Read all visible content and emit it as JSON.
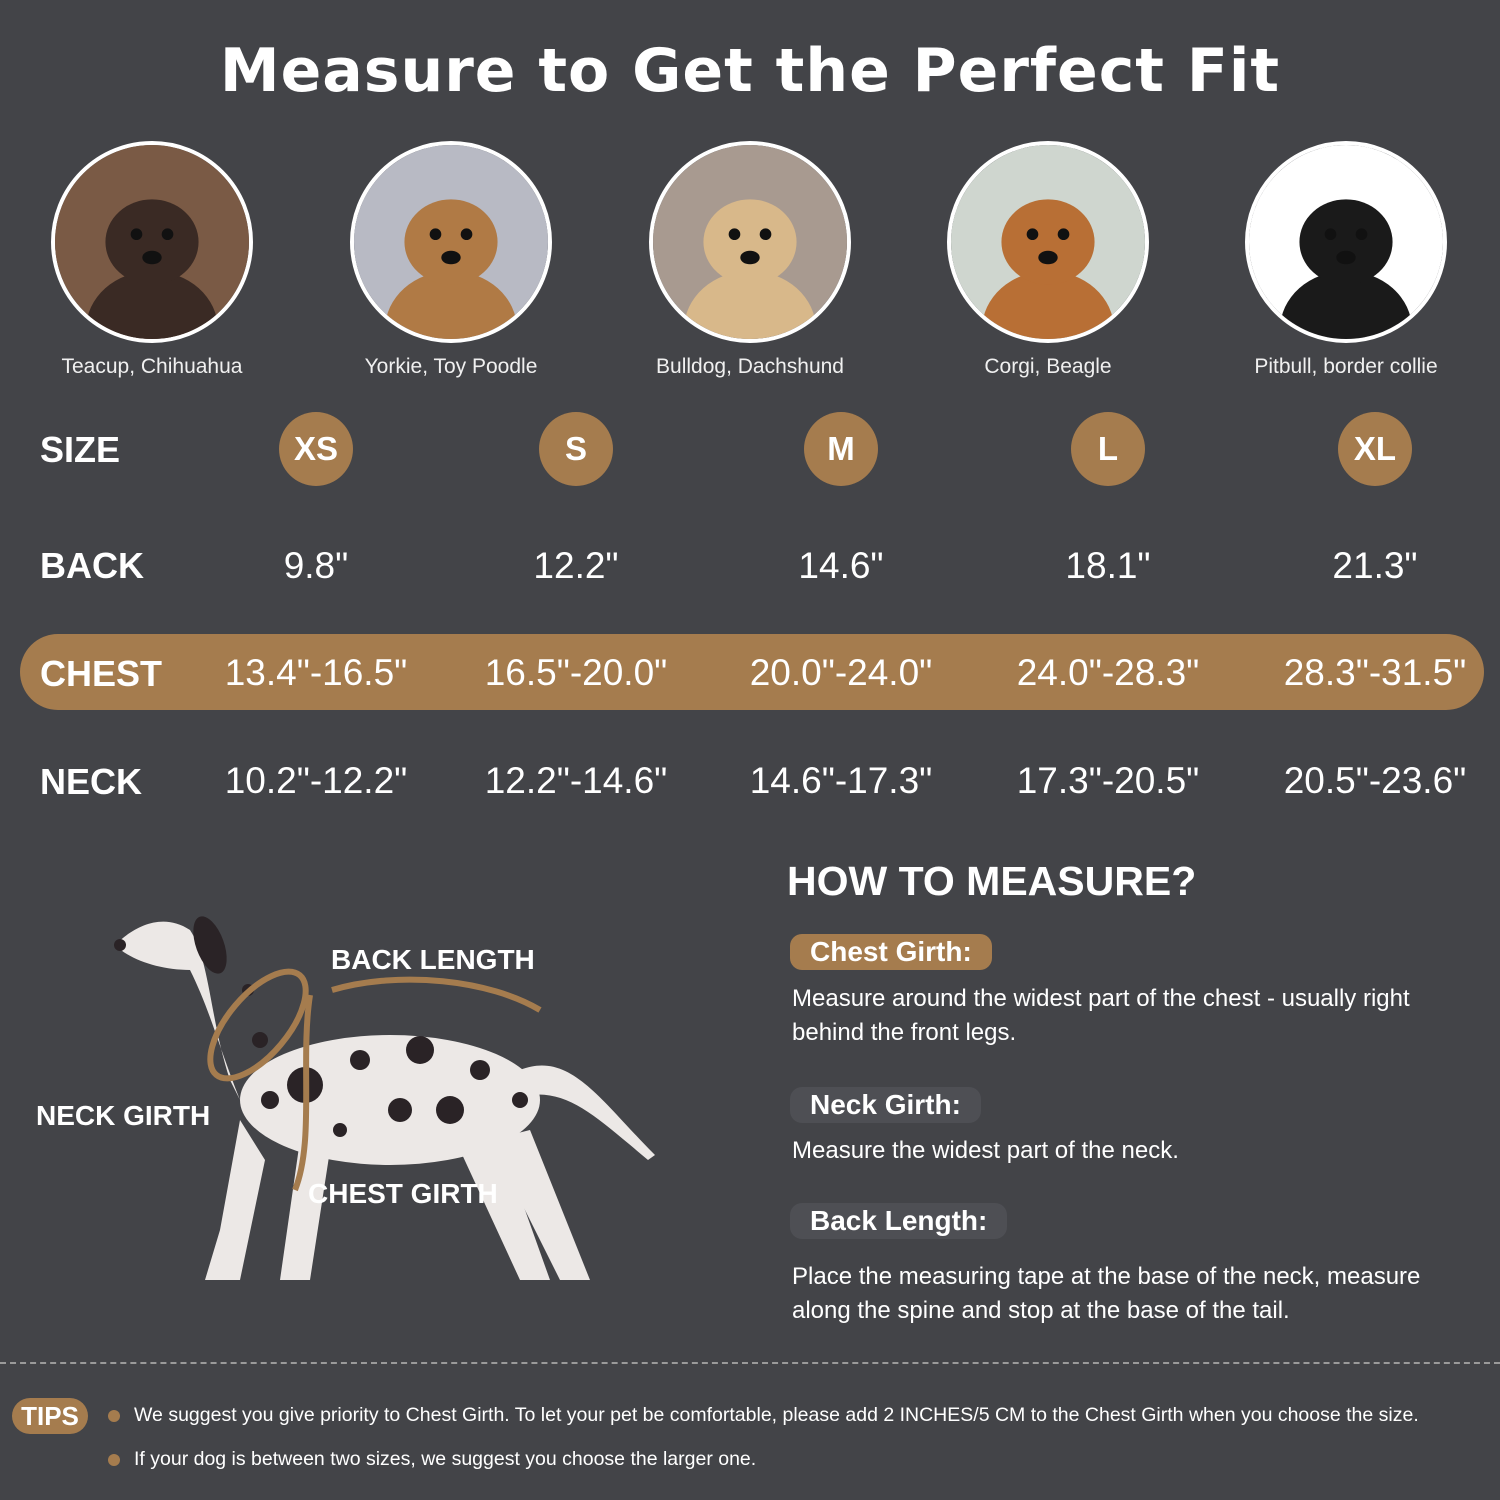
{
  "title": "Measure to Get the Perfect Fit",
  "breeds": [
    {
      "caption": "Teacup, Chihuahua",
      "bg": "#7a5a45",
      "fur": "#3a2a24"
    },
    {
      "caption": "Yorkie, Toy Poodle",
      "bg": "#b8bac4",
      "fur": "#b07a45"
    },
    {
      "caption": "Bulldog, Dachshund",
      "bg": "#a89a90",
      "fur": "#d8b88a"
    },
    {
      "caption": "Corgi, Beagle",
      "bg": "#cfd6cf",
      "fur": "#b86f35"
    },
    {
      "caption": "Pitbull, border collie",
      "bg": "#ffffff",
      "fur": "#1a1a1a"
    }
  ],
  "table": {
    "size_label": "SIZE",
    "back_label": "BACK",
    "chest_label": "CHEST",
    "neck_label": "NECK",
    "sizes": [
      "XS",
      "S",
      "M",
      "L",
      "XL"
    ],
    "back": [
      "9.8\"",
      "12.2\"",
      "14.6\"",
      "18.1\"",
      "21.3\""
    ],
    "chest": [
      "13.4\"-16.5\"",
      "16.5\"-20.0\"",
      "20.0\"-24.0\"",
      "24.0\"-28.3\"",
      "28.3\"-31.5\""
    ],
    "neck": [
      "10.2\"-12.2\"",
      "12.2\"-14.6\"",
      "14.6\"-17.3\"",
      "17.3\"-20.5\"",
      "20.5\"-23.6\""
    ]
  },
  "diagram": {
    "back_length": "BACK LENGTH",
    "neck_girth": "NECK GIRTH",
    "chest_girth": "CHEST GIRTH"
  },
  "howto": {
    "title": "HOW TO MEASURE?",
    "chest_label": "Chest Girth:",
    "chest_desc": "Measure around the widest part of the chest - usually right behind the front legs.",
    "neck_label": "Neck Girth:",
    "neck_desc": "Measure the widest part of the neck.",
    "back_label": "Back Length:",
    "back_desc": "Place the measuring tape at the base of the neck, measure along the spine and stop at the base of the tail."
  },
  "tips": {
    "label": "TIPS",
    "items": [
      "We suggest you give priority to Chest Girth. To let your pet be comfortable, please add 2 INCHES/5 CM to the Chest Girth when you choose the size.",
      "If your dog is between two sizes, we suggest you choose the larger one."
    ]
  },
  "colors": {
    "background": "#434448",
    "accent": "#a57c4e"
  }
}
